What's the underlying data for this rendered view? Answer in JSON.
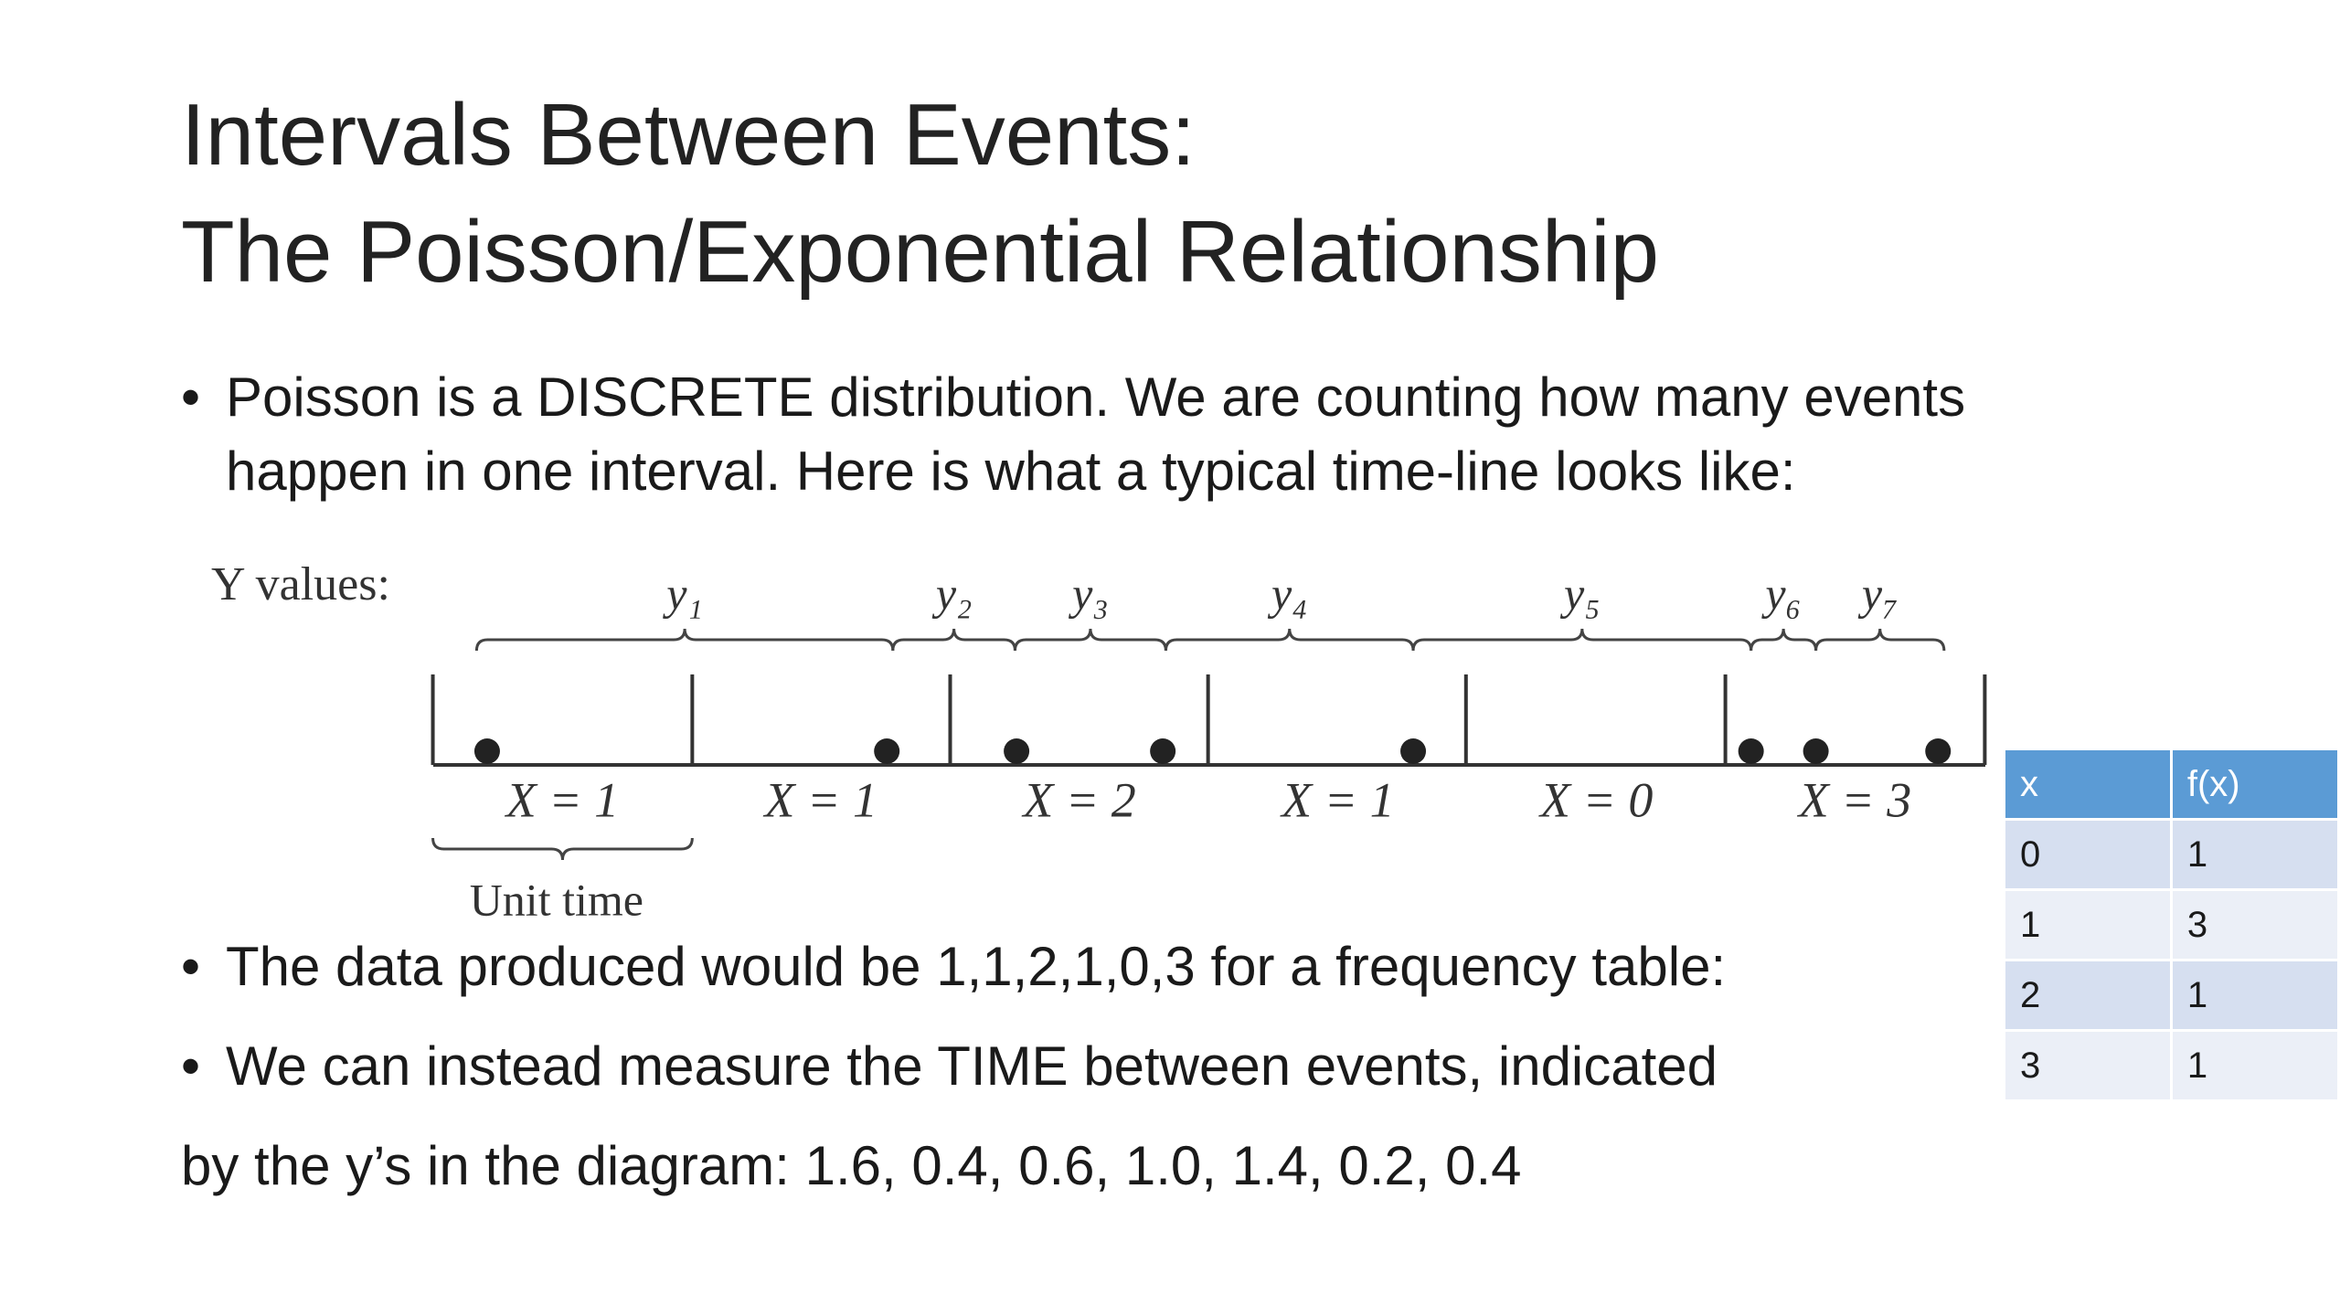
{
  "title": {
    "lines": [
      "Intervals Between Events:",
      "The Poisson/Exponential Relationship"
    ]
  },
  "bullets": [
    {
      "lines": [
        "Poisson is a DISCRETE distribution. We are counting how many events",
        "happen in one interval. Here is what a typical time-line looks like:"
      ]
    },
    {
      "lines": [
        "The data produced would be 1,1,2,1,0,3 for a frequency table:"
      ]
    },
    {
      "lines": [
        "We can instead measure the TIME between events, indicated"
      ]
    }
  ],
  "continuation": "by the y’s in the diagram: 1.6, 0.4, 0.6, 1.0, 1.4, 0.2, 0.4",
  "diagram": {
    "y_axis_label": "Y values:",
    "y_labels": [
      "y₁",
      "y₂",
      "y₃",
      "y₄",
      "y₅",
      "y₆",
      "y₇"
    ],
    "x_labels": [
      "X = 1",
      "X = 1",
      "X = 2",
      "X = 1",
      "X = 0",
      "X = 3"
    ],
    "unit_label": "Unit time"
  },
  "table": {
    "header": [
      "x",
      "f(x)"
    ],
    "rows": [
      [
        "0",
        "1"
      ],
      [
        "1",
        "3"
      ],
      [
        "2",
        "1"
      ],
      [
        "3",
        "1"
      ]
    ]
  }
}
